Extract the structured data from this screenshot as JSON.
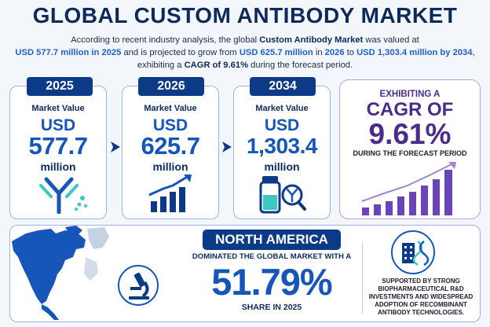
{
  "title": "GLOBAL CUSTOM ANTIBODY MARKET",
  "intro": {
    "line1_pre": "According to recent industry analysis, the global ",
    "line1_bold": "Custom Antibody Market",
    "line1_post": " was valued at",
    "line2_a": "USD 577.7 million in 2025",
    "line2_b": " and is projected to grow from ",
    "line2_c": "USD 625.7 million",
    "line2_d": " in ",
    "line2_e": "2026",
    "line2_f": " to ",
    "line2_g": "USD 1,303.4 million by 2034",
    "line2_h": ",",
    "line3_a": "exhibiting a ",
    "line3_b": "CAGR of 9.61%",
    "line3_c": " during the forecast period."
  },
  "cards": [
    {
      "year": "2025",
      "label": "Market Value",
      "currency": "USD",
      "value": "577.7",
      "unit": "million",
      "icon": "antibody-icon"
    },
    {
      "year": "2026",
      "label": "Market Value",
      "currency": "USD",
      "value": "625.7",
      "unit": "million",
      "icon": "growth-chart-icon"
    },
    {
      "year": "2034",
      "label": "Market Value",
      "currency": "USD",
      "value": "1,303.4",
      "unit": "million",
      "icon": "vial-antibody-icon"
    }
  ],
  "cagr": {
    "top": "EXHIBITING A",
    "mid": "CAGR OF",
    "value": "9.61%",
    "sub": "DURING THE FORECAST PERIOD"
  },
  "region": {
    "name": "NORTH AMERICA",
    "dominated": "DOMINATED THE GLOBAL MARKET WITH A",
    "share": "51.79%",
    "share_label": "SHARE IN 2025",
    "support": "SUPPORTED BY STRONG BIOPHARMACEUTICAL R&D INVESTMENTS AND WIDESPREAD ADOPTION OF RECOMBINANT ANTIBODY TECHNOLOGIES."
  },
  "colors": {
    "navy": "#0d3a86",
    "blue": "#1556b8",
    "purple": "#4a2d8a",
    "teal": "#3ec7c2"
  }
}
